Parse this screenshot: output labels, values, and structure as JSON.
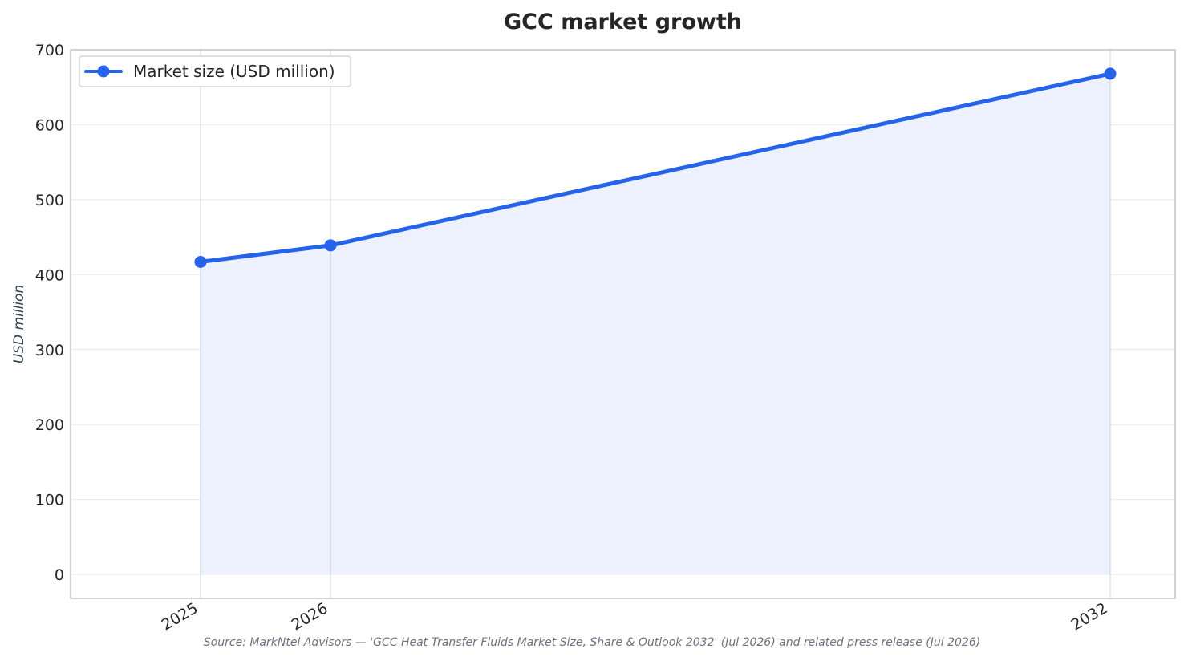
{
  "chart_data": {
    "type": "area",
    "title": "GCC market growth",
    "xlabel": "",
    "ylabel": "USD million",
    "categories": [
      "2025",
      "2026",
      "2032"
    ],
    "x": [
      2025,
      2026,
      2032
    ],
    "series": [
      {
        "name": "Market size (USD million)",
        "values": [
          417,
          439,
          668
        ],
        "color": "#2563eb",
        "fill_color": "#ecf1fd",
        "marker": "circle"
      }
    ],
    "yticks": [
      "0",
      "100",
      "200",
      "300",
      "400",
      "500",
      "600",
      "700"
    ],
    "ylim": [
      -32,
      700
    ],
    "xlim": [
      2024.0,
      2032.5
    ],
    "grid": true,
    "legend": "top-left",
    "source": "Source: MarkNtel Advisors — 'GCC Heat Transfer Fluids Market Size, Share & Outlook 2032' (Jul 2026) and related press release (Jul 2026)"
  }
}
